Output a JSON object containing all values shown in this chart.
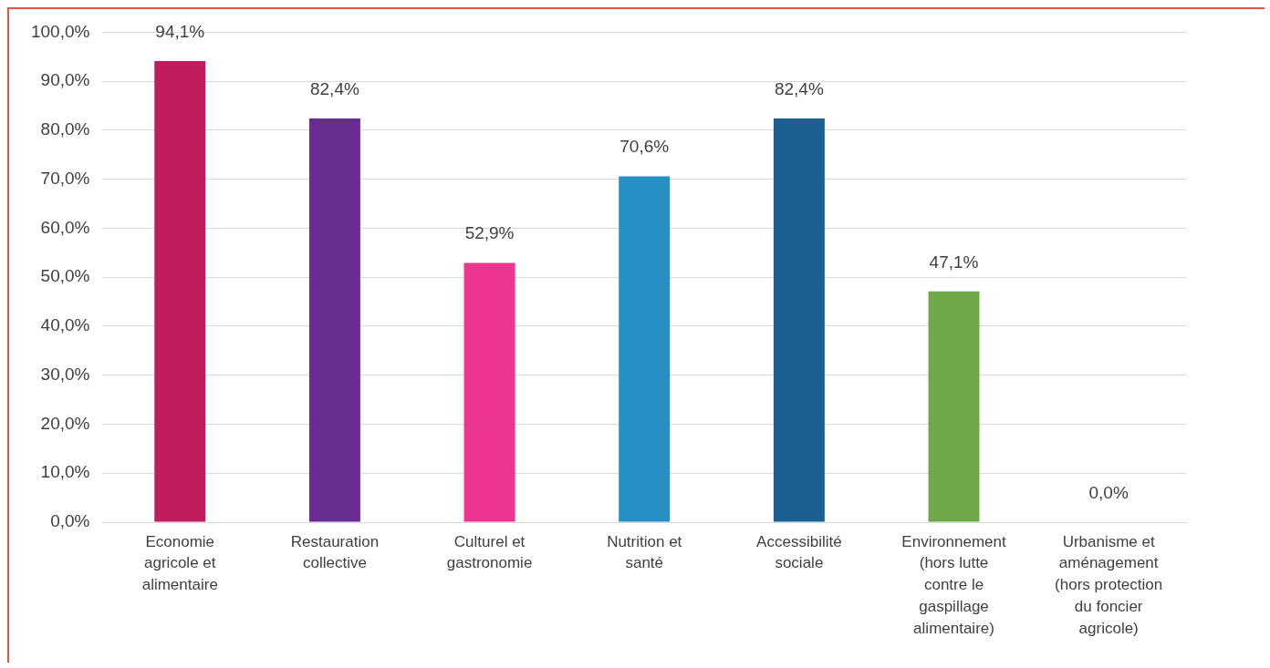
{
  "chart_data": {
    "type": "bar",
    "categories": [
      "Economie agricole et alimentaire",
      "Restauration collective",
      "Culturel et gastronomie",
      "Nutrition et santé",
      "Accessibilité sociale",
      "Environnement (hors lutte contre le gaspillage alimentaire)",
      "Urbanisme et aménagement (hors protection du foncier agricole)"
    ],
    "values": [
      94.1,
      82.4,
      52.9,
      70.6,
      82.4,
      47.1,
      0
    ],
    "colors": [
      "#c01c5e",
      "#672d91",
      "#ec3590",
      "#2590c3",
      "#1a6090",
      "#6ea847",
      "#a5a5a5"
    ],
    "value_labels": [
      "94,1%",
      "82,4%",
      "52,9%",
      "70,6%",
      "82,4%",
      "47,1%",
      "0,0%"
    ],
    "ylim": [
      0,
      100
    ],
    "yticks": [
      {
        "value": 0,
        "label": "0,0%"
      },
      {
        "value": 10,
        "label": "10,0%"
      },
      {
        "value": 20,
        "label": "20,0%"
      },
      {
        "value": 30,
        "label": "30,0%"
      },
      {
        "value": 40,
        "label": "40,0%"
      },
      {
        "value": 50,
        "label": "50,0%"
      },
      {
        "value": 60,
        "label": "60,0%"
      },
      {
        "value": 70,
        "label": "70,0%"
      },
      {
        "value": 80,
        "label": "80,0%"
      },
      {
        "value": 90,
        "label": "90,0%"
      },
      {
        "value": 100,
        "label": "100,0%"
      }
    ],
    "grid": "y",
    "legend": false
  }
}
